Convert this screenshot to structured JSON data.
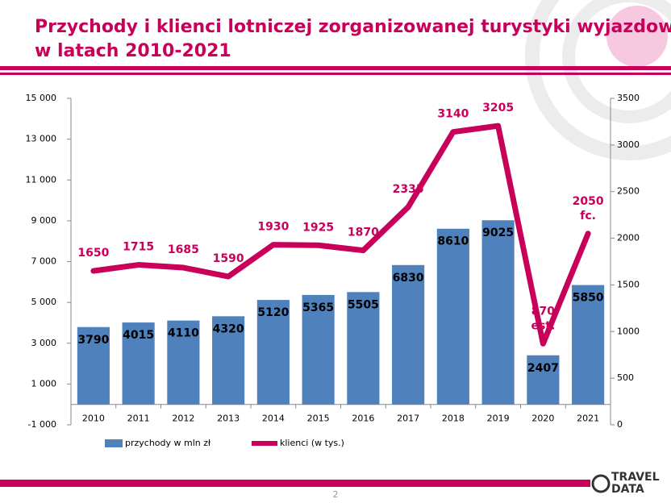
{
  "chart_data": {
    "type": "bar_line",
    "title": [
      "Przychody i klienci lotniczej zorganizowanej turystyki wyjazdowej",
      "w latach 2010-2021"
    ],
    "categories": [
      "2010",
      "2011",
      "2012",
      "2013",
      "2014",
      "2015",
      "2016",
      "2017",
      "2018",
      "2019",
      "2020",
      "2021"
    ],
    "series": [
      {
        "name": "przychody w mln zł",
        "color": "#4f81bd",
        "kind": "bar",
        "axis": "y",
        "values": [
          3790,
          4015,
          4110,
          4320,
          5120,
          5365,
          5505,
          6830,
          8610,
          9025,
          2407,
          5850
        ]
      },
      {
        "name": "klienci (w tys.)",
        "color": "#c8005a",
        "kind": "line",
        "axis": "y2",
        "values": [
          1650,
          1715,
          1685,
          1590,
          1930,
          1925,
          1870,
          2335,
          3140,
          3205,
          870,
          2050
        ],
        "value_labels": [
          "1650",
          "1715",
          "1685",
          "1590",
          "1930",
          "1925",
          "1870",
          "2335",
          "3140",
          "3205",
          "870 est.",
          "2050 fc."
        ]
      }
    ],
    "ylim": [
      -1000,
      15000
    ],
    "yticks": [
      {
        "value": -1000,
        "label": "-1 000"
      },
      {
        "value": 1000,
        "label": "1 000"
      },
      {
        "value": 3000,
        "label": "3 000"
      },
      {
        "value": 5000,
        "label": "5 000"
      },
      {
        "value": 7000,
        "label": "7 000"
      },
      {
        "value": 9000,
        "label": "9 000"
      },
      {
        "value": 11000,
        "label": "11 000"
      },
      {
        "value": 13000,
        "label": "13 000"
      },
      {
        "value": 15000,
        "label": "15 000"
      }
    ],
    "y2lim": [
      0,
      3500
    ],
    "y2ticks": [
      0,
      500,
      1000,
      1500,
      2000,
      2500,
      3000,
      3500
    ],
    "legend": "bottom",
    "page_number": "2",
    "logo": [
      "TRAVEL",
      "DATA"
    ]
  }
}
